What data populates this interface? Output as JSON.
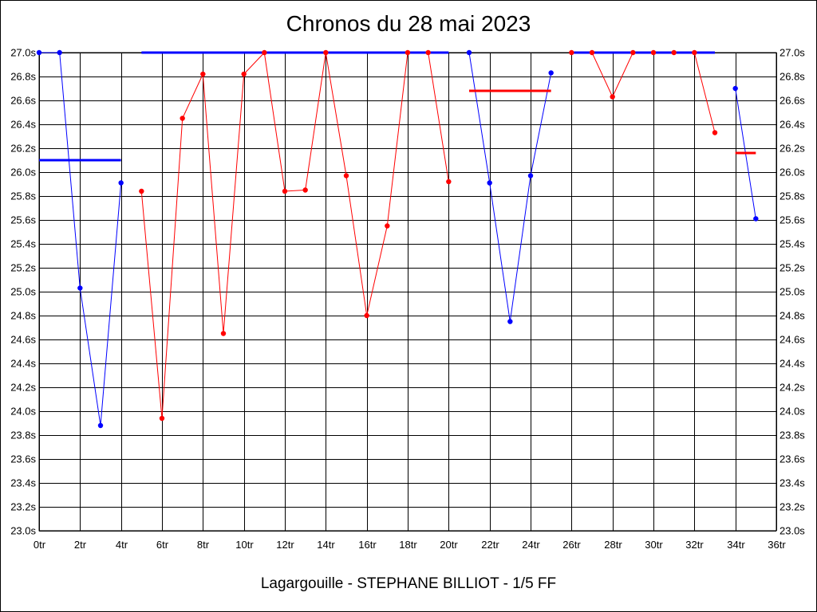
{
  "chart_data": {
    "type": "line",
    "title": "Chronos du 28 mai 2023",
    "footer": "Lagargouille - STEPHANE BILLIOT - 1/5 FF",
    "xlim": [
      0,
      36
    ],
    "ylim": [
      23.0,
      27.0
    ],
    "grid": true,
    "x_ticks": [
      0,
      2,
      4,
      6,
      8,
      10,
      12,
      14,
      16,
      18,
      20,
      22,
      24,
      26,
      28,
      30,
      32,
      34,
      36
    ],
    "x_tick_labels": [
      "0tr",
      "2tr",
      "4tr",
      "6tr",
      "8tr",
      "10tr",
      "12tr",
      "14tr",
      "16tr",
      "18tr",
      "20tr",
      "22tr",
      "24tr",
      "26tr",
      "28tr",
      "30tr",
      "32tr",
      "34tr",
      "36tr"
    ],
    "y_ticks": [
      23.0,
      23.2,
      23.4,
      23.6,
      23.8,
      24.0,
      24.2,
      24.4,
      24.6,
      24.8,
      25.0,
      25.2,
      25.4,
      25.6,
      25.8,
      26.0,
      26.2,
      26.4,
      26.6,
      26.8,
      27.0
    ],
    "y_tick_labels": [
      "23.0s",
      "23.2s",
      "23.4s",
      "23.6s",
      "23.8s",
      "24.0s",
      "24.2s",
      "24.4s",
      "24.6s",
      "24.8s",
      "25.0s",
      "25.2s",
      "25.4s",
      "25.6s",
      "25.8s",
      "26.0s",
      "26.2s",
      "26.4s",
      "26.6s",
      "26.8s",
      "27.0s"
    ],
    "series": [
      {
        "color": "#0000ff",
        "x": [
          0,
          1,
          2,
          3,
          4
        ],
        "values": [
          27.0,
          27.0,
          25.03,
          23.88,
          25.91
        ],
        "mean": 26.1
      },
      {
        "color": "#ff0000",
        "x": [
          5,
          6,
          7,
          8,
          9,
          10,
          11,
          12,
          13,
          14,
          15,
          16,
          17,
          18,
          19,
          20
        ],
        "values": [
          25.84,
          23.94,
          26.45,
          26.82,
          24.65,
          26.82,
          27.0,
          25.84,
          25.85,
          27.0,
          25.97,
          24.8,
          25.55,
          27.0,
          27.0,
          25.92
        ],
        "mean": 27.0,
        "mean_color": "#0000ff"
      },
      {
        "color": "#0000ff",
        "x": [
          21,
          22,
          23,
          24,
          25
        ],
        "values": [
          27.0,
          25.91,
          24.75,
          25.97,
          26.83
        ],
        "mean": 26.68,
        "mean_color": "#ff0000"
      },
      {
        "color": "#ff0000",
        "x": [
          26,
          27,
          28,
          29,
          30,
          31,
          32,
          33
        ],
        "values": [
          27.0,
          27.0,
          26.63,
          27.0,
          27.0,
          27.0,
          27.0,
          26.33
        ],
        "mean": 27.0,
        "mean_color": "#0000ff"
      },
      {
        "color": "#0000ff",
        "x": [
          34,
          35
        ],
        "values": [
          26.7,
          25.61
        ],
        "mean": 26.16,
        "mean_color": "#ff0000"
      }
    ]
  }
}
